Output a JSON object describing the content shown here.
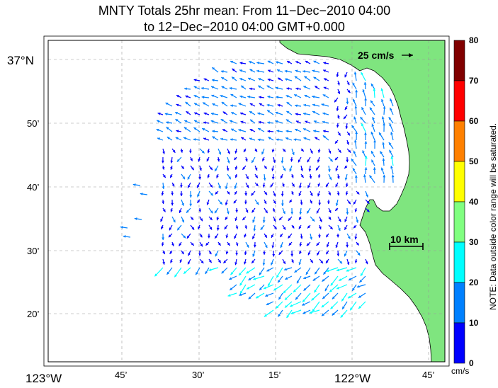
{
  "title": {
    "line1": "MNTY Totals 25hr mean: From 11−Dec−2010 04:00",
    "line2": "to 12−Dec−2010 04:00 GMT+0.000"
  },
  "map": {
    "region": "Monterey Bay",
    "land_color": "#7fe57f",
    "grid": true,
    "lat_labels": [
      "37°N",
      "50’",
      "40’",
      "30’",
      "20’"
    ],
    "lon_labels": [
      "123°W",
      "45’",
      "30’",
      "15’",
      "122°W",
      "45’"
    ],
    "scale_vector_label": "25 cm/s",
    "scale_bar_label": "10 km"
  },
  "colorbar": {
    "ticks": [
      "80",
      "70",
      "60",
      "50",
      "40",
      "30",
      "20",
      "10",
      "0"
    ],
    "colors": [
      "#800000",
      "#ff0000",
      "#ff8000",
      "#ffff00",
      "#80ff80",
      "#00ffff",
      "#0080ff",
      "#0000ff"
    ],
    "unit": "cm/s",
    "note": "NOTE: Data outside color range will be saturated."
  }
}
